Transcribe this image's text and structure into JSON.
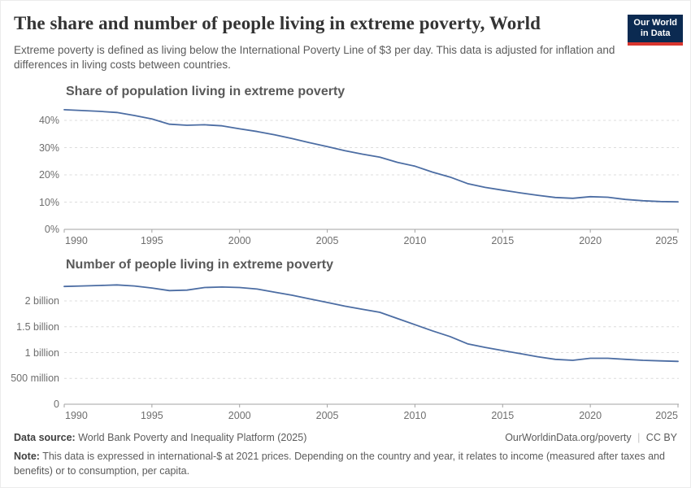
{
  "header": {
    "title": "The share and number of people living in extreme poverty, World",
    "subtitle": "Extreme poverty is defined as living below the International Poverty Line of $3 per day. This data is adjusted for inflation and differences in living costs between countries.",
    "logo": {
      "line1": "Our World",
      "line2": "in Data"
    }
  },
  "footer": {
    "source_label": "Data source:",
    "source_text": "World Bank Poverty and Inequality Platform (2025)",
    "url": "OurWorldinData.org/poverty",
    "separator": "|",
    "license": "CC BY",
    "note_label": "Note:",
    "note_text": "This data is expressed in international-$ at 2021 prices. Depending on the country and year, it relates to income (measured after taxes and benefits) or to consumption, per capita."
  },
  "colors": {
    "line": "#4c6da3",
    "gridline": "#dcdcdc",
    "axis": "#a3a3a3",
    "tick_label": "#6e6e6e",
    "logo_navy": "#0b2a51",
    "logo_red": "#d8352e"
  },
  "chart_data": [
    {
      "type": "line",
      "title": "Share of population living in extreme poverty",
      "unit": "%",
      "grid": true,
      "legend_position": "none",
      "xlim": [
        1990,
        2025
      ],
      "ylim": [
        0,
        44
      ],
      "x_ticks": [
        1990,
        1995,
        2000,
        2005,
        2010,
        2015,
        2020,
        2025
      ],
      "y_ticks": [
        {
          "value": 0,
          "label": "0%"
        },
        {
          "value": 10,
          "label": "10%"
        },
        {
          "value": 20,
          "label": "20%"
        },
        {
          "value": 30,
          "label": "30%"
        },
        {
          "value": 40,
          "label": "40%"
        }
      ],
      "x": [
        1990,
        1991,
        1992,
        1993,
        1994,
        1995,
        1996,
        1997,
        1998,
        1999,
        2000,
        2001,
        2002,
        2003,
        2004,
        2005,
        2006,
        2007,
        2008,
        2009,
        2010,
        2011,
        2012,
        2013,
        2014,
        2015,
        2016,
        2017,
        2018,
        2019,
        2020,
        2021,
        2022,
        2023,
        2024,
        2025
      ],
      "series": [
        {
          "name": "World",
          "values": [
            43.9,
            43.6,
            43.3,
            42.9,
            41.8,
            40.5,
            38.6,
            38.2,
            38.4,
            38.0,
            36.9,
            35.9,
            34.7,
            33.3,
            31.8,
            30.4,
            28.9,
            27.6,
            26.5,
            24.6,
            23.2,
            21.0,
            19.2,
            16.8,
            15.4,
            14.4,
            13.4,
            12.5,
            11.7,
            11.4,
            12.0,
            11.8,
            11.0,
            10.5,
            10.2,
            10.1
          ]
        }
      ]
    },
    {
      "type": "line",
      "title": "Number of people living in extreme poverty",
      "unit": "billion people",
      "grid": true,
      "legend_position": "none",
      "xlim": [
        1990,
        2025
      ],
      "ylim": [
        0,
        2.35
      ],
      "x_ticks": [
        1990,
        1995,
        2000,
        2005,
        2010,
        2015,
        2020,
        2025
      ],
      "y_ticks": [
        {
          "value": 0,
          "label": "0"
        },
        {
          "value": 0.5,
          "label": "500 million"
        },
        {
          "value": 1,
          "label": "1 billion"
        },
        {
          "value": 1.5,
          "label": "1.5 billion"
        },
        {
          "value": 2,
          "label": "2 billion"
        }
      ],
      "x": [
        1990,
        1991,
        1992,
        1993,
        1994,
        1995,
        1996,
        1997,
        1998,
        1999,
        2000,
        2001,
        2002,
        2003,
        2004,
        2005,
        2006,
        2007,
        2008,
        2009,
        2010,
        2011,
        2012,
        2013,
        2014,
        2015,
        2016,
        2017,
        2018,
        2019,
        2020,
        2021,
        2022,
        2023,
        2024,
        2025
      ],
      "series": [
        {
          "name": "World",
          "values": [
            2.28,
            2.29,
            2.3,
            2.31,
            2.29,
            2.25,
            2.2,
            2.21,
            2.26,
            2.27,
            2.26,
            2.23,
            2.17,
            2.11,
            2.04,
            1.97,
            1.9,
            1.84,
            1.78,
            1.66,
            1.54,
            1.42,
            1.31,
            1.17,
            1.1,
            1.04,
            0.98,
            0.92,
            0.87,
            0.85,
            0.89,
            0.89,
            0.87,
            0.85,
            0.84,
            0.83
          ]
        }
      ]
    }
  ]
}
